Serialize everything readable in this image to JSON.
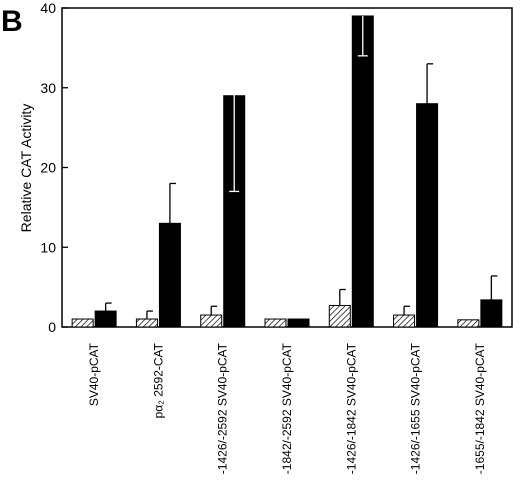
{
  "panel_label": "B",
  "chart_data": {
    "type": "bar",
    "title": "",
    "xlabel": "",
    "ylabel": "Relative CAT Activity",
    "ylim": [
      0,
      40
    ],
    "yticks": [
      0,
      10,
      20,
      30,
      40
    ],
    "grid": false,
    "legend": "none",
    "categories": [
      "SV40-pCAT",
      "pα₂ 2592-CAT",
      "-1426/-2592  SV40-pCAT",
      "-1842/-2592  SV40-pCAT",
      "-1426/-1842  SV40-pCAT",
      "-1426/-1655  SV40-pCAT",
      "-1655/-1842  SV40-pCAT"
    ],
    "series": [
      {
        "style": "hatched",
        "color": "#ffffff",
        "values": [
          1.0,
          1.0,
          1.5,
          1.0,
          2.7,
          1.5,
          0.9
        ],
        "errors": [
          0,
          1.0,
          1.1,
          0,
          2.0,
          1.1,
          0
        ]
      },
      {
        "style": "solid",
        "color": "#000000",
        "values": [
          2.0,
          13.0,
          29.0,
          1.0,
          39.0,
          28.0,
          3.4
        ],
        "errors": [
          1.0,
          5.0,
          12.0,
          0,
          5.0,
          5.0,
          3.0
        ]
      }
    ]
  }
}
